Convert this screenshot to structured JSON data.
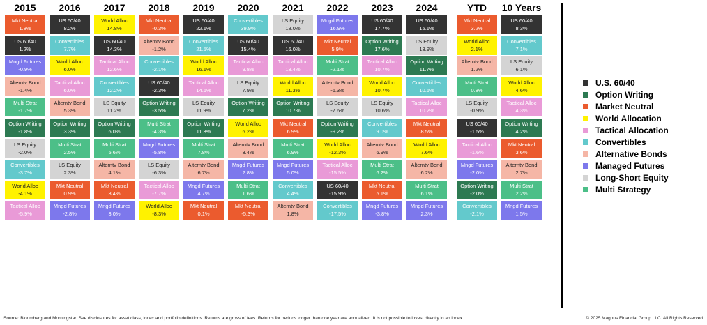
{
  "chart_data": {
    "type": "table",
    "title": "",
    "categories": [
      "2015",
      "2016",
      "2017",
      "2018",
      "2019",
      "2020",
      "2021",
      "2022",
      "2023",
      "2024",
      "YTD",
      "10 Years"
    ],
    "colors": {
      "U.S. 60/40": "#333333",
      "Option Writing": "#2d7a52",
      "Market Neutral": "#eb5b2e",
      "World Allocation": "#fff200",
      "Tactical Allocation": "#e99ad7",
      "Convertibles": "#63c9cc",
      "Alternative Bonds": "#f5b6a6",
      "Managed Futures": "#7d78ec",
      "Long-Short Equity": "#d4d4d4",
      "Multi Strategy": "#4cbf88"
    },
    "columns": [
      {
        "year": "2015",
        "cells": [
          {
            "name": "Mkt Neutral",
            "value": "1.8%",
            "cls": "Market Neutral"
          },
          {
            "name": "US 60/40",
            "value": "1.2%",
            "cls": "U.S. 60/40"
          },
          {
            "name": "Mngd Futures",
            "value": "-0.9%",
            "cls": "Managed Futures"
          },
          {
            "name": "Alterntv Bond",
            "value": "-1.4%",
            "cls": "Alternative Bonds"
          },
          {
            "name": "Multi Strat",
            "value": "-1.7%",
            "cls": "Multi Strategy"
          },
          {
            "name": "Option Writing",
            "value": "-1.8%",
            "cls": "Option Writing"
          },
          {
            "name": "LS Equity",
            "value": "-2.0%",
            "cls": "Long-Short Equity"
          },
          {
            "name": "Convertibles",
            "value": "-3.7%",
            "cls": "Convertibles"
          },
          {
            "name": "World Alloc",
            "value": "-4.1%",
            "cls": "World Allocation"
          },
          {
            "name": "Tactical Alloc",
            "value": "-5.9%",
            "cls": "Tactical Allocation"
          }
        ]
      },
      {
        "year": "2016",
        "cells": [
          {
            "name": "US 60/40",
            "value": "8.2%",
            "cls": "U.S. 60/40"
          },
          {
            "name": "Convertibles",
            "value": "7.7%",
            "cls": "Convertibles"
          },
          {
            "name": "World Alloc",
            "value": "6.0%",
            "cls": "World Allocation"
          },
          {
            "name": "Tactical Alloc",
            "value": "6.0%",
            "cls": "Tactical Allocation"
          },
          {
            "name": "Alterntv Bond",
            "value": "5.3%",
            "cls": "Alternative Bonds"
          },
          {
            "name": "Option Writing",
            "value": "3.3%",
            "cls": "Option Writing"
          },
          {
            "name": "Multi Strat",
            "value": "2.5%",
            "cls": "Multi Strategy"
          },
          {
            "name": "LS Equity",
            "value": "2.3%",
            "cls": "Long-Short Equity"
          },
          {
            "name": "Mkt Neutral",
            "value": "0.9%",
            "cls": "Market Neutral"
          },
          {
            "name": "Mngd Futures",
            "value": "-2.8%",
            "cls": "Managed Futures"
          }
        ]
      },
      {
        "year": "2017",
        "cells": [
          {
            "name": "World Alloc",
            "value": "14.8%",
            "cls": "World Allocation"
          },
          {
            "name": "US 60/40",
            "value": "14.3%",
            "cls": "U.S. 60/40"
          },
          {
            "name": "Tactical Alloc",
            "value": "12.6%",
            "cls": "Tactical Allocation"
          },
          {
            "name": "Convertibles",
            "value": "12.2%",
            "cls": "Convertibles"
          },
          {
            "name": "LS Equity",
            "value": "11.2%",
            "cls": "Long-Short Equity"
          },
          {
            "name": "Option Writing",
            "value": "6.0%",
            "cls": "Option Writing"
          },
          {
            "name": "Multi Strat",
            "value": "5.6%",
            "cls": "Multi Strategy"
          },
          {
            "name": "Alterntv Bond",
            "value": "4.1%",
            "cls": "Alternative Bonds"
          },
          {
            "name": "Mkt Neutral",
            "value": "3.4%",
            "cls": "Market Neutral"
          },
          {
            "name": "Mngd Futures",
            "value": "3.0%",
            "cls": "Managed Futures"
          }
        ]
      },
      {
        "year": "2018",
        "cells": [
          {
            "name": "Mkt Neutral",
            "value": "-0.3%",
            "cls": "Market Neutral"
          },
          {
            "name": "Alterntv Bond",
            "value": "-1.2%",
            "cls": "Alternative Bonds"
          },
          {
            "name": "Convertibles",
            "value": "-2.1%",
            "cls": "Convertibles"
          },
          {
            "name": "US 60/40",
            "value": "-2.3%",
            "cls": "U.S. 60/40"
          },
          {
            "name": "Option Writing",
            "value": "-3.5%",
            "cls": "Option Writing"
          },
          {
            "name": "Multi Strat",
            "value": "-4.3%",
            "cls": "Multi Strategy"
          },
          {
            "name": "Mngd Futures",
            "value": "-5.8%",
            "cls": "Managed Futures"
          },
          {
            "name": "LS Equity",
            "value": "-6.3%",
            "cls": "Long-Short Equity"
          },
          {
            "name": "Tactical Alloc",
            "value": "-7.7%",
            "cls": "Tactical Allocation"
          },
          {
            "name": "World Alloc",
            "value": "-8.3%",
            "cls": "World Allocation"
          }
        ]
      },
      {
        "year": "2019",
        "cells": [
          {
            "name": "US 60/40",
            "value": "22.1%",
            "cls": "U.S. 60/40"
          },
          {
            "name": "Convertibles",
            "value": "21.5%",
            "cls": "Convertibles"
          },
          {
            "name": "World Alloc",
            "value": "16.1%",
            "cls": "World Allocation"
          },
          {
            "name": "Tactical Alloc",
            "value": "14.6%",
            "cls": "Tactical Allocation"
          },
          {
            "name": "LS Equity",
            "value": "11.9%",
            "cls": "Long-Short Equity"
          },
          {
            "name": "Option Writing",
            "value": "11.3%",
            "cls": "Option Writing"
          },
          {
            "name": "Multi Strat",
            "value": "7.8%",
            "cls": "Multi Strategy"
          },
          {
            "name": "Alterntv Bond",
            "value": "6.7%",
            "cls": "Alternative Bonds"
          },
          {
            "name": "Mngd Futures",
            "value": "4.7%",
            "cls": "Managed Futures"
          },
          {
            "name": "Mkt Neutral",
            "value": "0.1%",
            "cls": "Market Neutral"
          }
        ]
      },
      {
        "year": "2020",
        "cells": [
          {
            "name": "Convertibles",
            "value": "39.9%",
            "cls": "Convertibles"
          },
          {
            "name": "US 60/40",
            "value": "15.4%",
            "cls": "U.S. 60/40"
          },
          {
            "name": "Tactical Alloc",
            "value": "9.8%",
            "cls": "Tactical Allocation"
          },
          {
            "name": "LS Equity",
            "value": "7.9%",
            "cls": "Long-Short Equity"
          },
          {
            "name": "Option Writing",
            "value": "7.2%",
            "cls": "Option Writing"
          },
          {
            "name": "World Alloc",
            "value": "6.2%",
            "cls": "World Allocation"
          },
          {
            "name": "Alterntv Bond",
            "value": "3.4%",
            "cls": "Alternative Bonds"
          },
          {
            "name": "Mngd Futures",
            "value": "2.8%",
            "cls": "Managed Futures"
          },
          {
            "name": "Multi Strat",
            "value": "1.6%",
            "cls": "Multi Strategy"
          },
          {
            "name": "Mkt Neutral",
            "value": "-5.3%",
            "cls": "Market Neutral"
          }
        ]
      },
      {
        "year": "2021",
        "cells": [
          {
            "name": "LS Equity",
            "value": "18.0%",
            "cls": "Long-Short Equity"
          },
          {
            "name": "US 60/40",
            "value": "16.0%",
            "cls": "U.S. 60/40"
          },
          {
            "name": "Tactical Alloc",
            "value": "13.4%",
            "cls": "Tactical Allocation"
          },
          {
            "name": "World Alloc",
            "value": "11.3%",
            "cls": "World Allocation"
          },
          {
            "name": "Option Writing",
            "value": "10.7%",
            "cls": "Option Writing"
          },
          {
            "name": "Mkt Neutral",
            "value": "6.9%",
            "cls": "Market Neutral"
          },
          {
            "name": "Multi Strat",
            "value": "6.9%",
            "cls": "Multi Strategy"
          },
          {
            "name": "Mngd Futures",
            "value": "5.0%",
            "cls": "Managed Futures"
          },
          {
            "name": "Convertibles",
            "value": "4.4%",
            "cls": "Convertibles"
          },
          {
            "name": "Alterntv Bond",
            "value": "1.8%",
            "cls": "Alternative Bonds"
          }
        ]
      },
      {
        "year": "2022",
        "cells": [
          {
            "name": "Mngd Futures",
            "value": "16.9%",
            "cls": "Managed Futures"
          },
          {
            "name": "Mkt Neutral",
            "value": "5.9%",
            "cls": "Market Neutral"
          },
          {
            "name": "Multi Strat",
            "value": "-2.1%",
            "cls": "Multi Strategy"
          },
          {
            "name": "Alterntv Bond",
            "value": "-6.3%",
            "cls": "Alternative Bonds"
          },
          {
            "name": "LS Equity",
            "value": "-7.6%",
            "cls": "Long-Short Equity"
          },
          {
            "name": "Option Writing",
            "value": "-9.2%",
            "cls": "Option Writing"
          },
          {
            "name": "World Alloc",
            "value": "-12.3%",
            "cls": "World Allocation"
          },
          {
            "name": "Tactical Alloc",
            "value": "-15.5%",
            "cls": "Tactical Allocation"
          },
          {
            "name": "US 60/40",
            "value": "-15.9%",
            "cls": "U.S. 60/40"
          },
          {
            "name": "Convertibles",
            "value": "-17.5%",
            "cls": "Convertibles"
          }
        ]
      },
      {
        "year": "2023",
        "cells": [
          {
            "name": "US 60/40",
            "value": "17.7%",
            "cls": "U.S. 60/40"
          },
          {
            "name": "Option Writing",
            "value": "17.6%",
            "cls": "Option Writing"
          },
          {
            "name": "Tactical Alloc",
            "value": "10.7%",
            "cls": "Tactical Allocation"
          },
          {
            "name": "World Alloc",
            "value": "10.7%",
            "cls": "World Allocation"
          },
          {
            "name": "LS Equity",
            "value": "10.6%",
            "cls": "Long-Short Equity"
          },
          {
            "name": "Convertibles",
            "value": "9.0%",
            "cls": "Convertibles"
          },
          {
            "name": "Alterntv Bond",
            "value": "6.9%",
            "cls": "Alternative Bonds"
          },
          {
            "name": "Multi Strat",
            "value": "6.2%",
            "cls": "Multi Strategy"
          },
          {
            "name": "Mkt Neutral",
            "value": "5.1%",
            "cls": "Market Neutral"
          },
          {
            "name": "Mngd Futures",
            "value": "-3.8%",
            "cls": "Managed Futures"
          }
        ]
      },
      {
        "year": "2024",
        "cells": [
          {
            "name": "US 60/40",
            "value": "15.1%",
            "cls": "U.S. 60/40"
          },
          {
            "name": "LS Equity",
            "value": "13.9%",
            "cls": "Long-Short Equity"
          },
          {
            "name": "Option Writing",
            "value": "11.7%",
            "cls": "Option Writing"
          },
          {
            "name": "Convertibles",
            "value": "10.6%",
            "cls": "Convertibles"
          },
          {
            "name": "Tactical Alloc",
            "value": "10.2%",
            "cls": "Tactical Allocation"
          },
          {
            "name": "Mkt Neutral",
            "value": "8.5%",
            "cls": "Market Neutral"
          },
          {
            "name": "World Alloc",
            "value": "7.6%",
            "cls": "World Allocation"
          },
          {
            "name": "Alterntv Bond",
            "value": "6.2%",
            "cls": "Alternative Bonds"
          },
          {
            "name": "Multi Strat",
            "value": "6.1%",
            "cls": "Multi Strategy"
          },
          {
            "name": "Mngd Futures",
            "value": "2.3%",
            "cls": "Managed Futures"
          }
        ]
      },
      {
        "year": "YTD",
        "cells": [
          {
            "name": "Mkt Neutral",
            "value": "3.2%",
            "cls": "Market Neutral"
          },
          {
            "name": "World Alloc",
            "value": "2.1%",
            "cls": "World Allocation"
          },
          {
            "name": "Alterntv Bond",
            "value": "1.2%",
            "cls": "Alternative Bonds"
          },
          {
            "name": "Multi Strat",
            "value": "0.8%",
            "cls": "Multi Strategy"
          },
          {
            "name": "LS Equity",
            "value": "-0.9%",
            "cls": "Long-Short Equity"
          },
          {
            "name": "US 60/40",
            "value": "-1.5%",
            "cls": "U.S. 60/40"
          },
          {
            "name": "Tactical Alloc",
            "value": "-1.6%",
            "cls": "Tactical Allocation"
          },
          {
            "name": "Mngd Futures",
            "value": "-2.0%",
            "cls": "Managed Futures"
          },
          {
            "name": "Option Writing",
            "value": "-2.0%",
            "cls": "Option Writing"
          },
          {
            "name": "Convertibles",
            "value": "-2.1%",
            "cls": "Convertibles"
          }
        ]
      },
      {
        "year": "10 Years",
        "cells": [
          {
            "name": "US 60/40",
            "value": "8.3%",
            "cls": "U.S. 60/40"
          },
          {
            "name": "Convertibles",
            "value": "7.1%",
            "cls": "Convertibles"
          },
          {
            "name": "LS Equity",
            "value": "6.1%",
            "cls": "Long-Short Equity"
          },
          {
            "name": "World Alloc",
            "value": "4.6%",
            "cls": "World Allocation"
          },
          {
            "name": "Tactical Alloc",
            "value": "4.3%",
            "cls": "Tactical Allocation"
          },
          {
            "name": "Option Writing",
            "value": "4.2%",
            "cls": "Option Writing"
          },
          {
            "name": "Mkt Neutral",
            "value": "3.6%",
            "cls": "Market Neutral"
          },
          {
            "name": "Alterntv Bond",
            "value": "2.7%",
            "cls": "Alternative Bonds"
          },
          {
            "name": "Multi Strat",
            "value": "2.2%",
            "cls": "Multi Strategy"
          },
          {
            "name": "Mngd Futures",
            "value": "1.5%",
            "cls": "Managed Futures"
          }
        ]
      }
    ]
  },
  "legend": [
    {
      "label": "U.S. 60/40",
      "color": "#333333"
    },
    {
      "label": "Option Writing",
      "color": "#2d7a52"
    },
    {
      "label": "Market Neutral",
      "color": "#eb5b2e"
    },
    {
      "label": "World Allocation",
      "color": "#fff200"
    },
    {
      "label": "Tactical Allocation",
      "color": "#e99ad7"
    },
    {
      "label": "Convertibles",
      "color": "#63c9cc"
    },
    {
      "label": "Alternative Bonds",
      "color": "#f5b6a6"
    },
    {
      "label": "Managed Futures",
      "color": "#7d78ec"
    },
    {
      "label": "Long-Short Equity",
      "color": "#d4d4d4"
    },
    {
      "label": "Multi Strategy",
      "color": "#4cbf88"
    }
  ],
  "footer": {
    "source": "Source: Bloomberg and Morningstar. See disclosures for asset class, index and portfolio definitions. Returns are gross of fees. Returns for periods longer than one year are annualized. It is not possible to invest directly in an index.",
    "copyright": "© 2025 Magnus Financial Group LLC. All Rights Reserved"
  }
}
